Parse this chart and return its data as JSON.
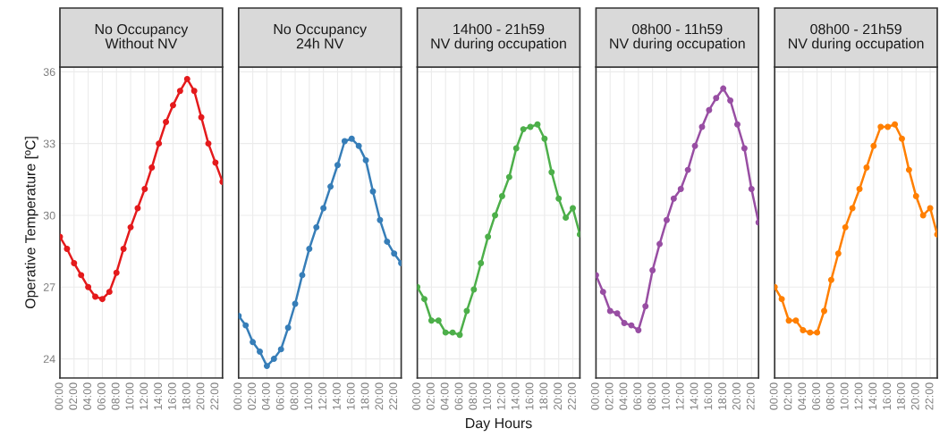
{
  "chart_data": [
    {
      "type": "line",
      "title": "No Occupancy\nWithout NV",
      "ylabel": "Operative Temperature [ºC]",
      "color": "#e41a1c",
      "marker": "circle",
      "line_style": "solid",
      "grid": true,
      "x": [
        0,
        1,
        2,
        3,
        4,
        5,
        6,
        7,
        8,
        9,
        10,
        11,
        12,
        13,
        14,
        15,
        16,
        17,
        18,
        19,
        20,
        21,
        22,
        23
      ],
      "values": [
        29.1,
        28.6,
        28.0,
        27.5,
        27.0,
        26.6,
        26.5,
        26.8,
        27.6,
        28.6,
        29.5,
        30.3,
        31.1,
        32.0,
        33.0,
        33.9,
        34.6,
        35.2,
        35.7,
        35.2,
        34.1,
        33.0,
        32.2,
        31.4
      ],
      "xlim": [
        0,
        23
      ],
      "ylim": [
        23.2,
        36.2
      ],
      "yticks": [
        24,
        27,
        30,
        33,
        36
      ],
      "xticks": [
        {
          "value": 0,
          "label": "00:00"
        },
        {
          "value": 2,
          "label": "02:00"
        },
        {
          "value": 4,
          "label": "04:00"
        },
        {
          "value": 6,
          "label": "06:00"
        },
        {
          "value": 8,
          "label": "08:00"
        },
        {
          "value": 10,
          "label": "10:00"
        },
        {
          "value": 12,
          "label": "12:00"
        },
        {
          "value": 14,
          "label": "14:00"
        },
        {
          "value": 16,
          "label": "16:00"
        },
        {
          "value": 18,
          "label": "18:00"
        },
        {
          "value": 20,
          "label": "20:00"
        },
        {
          "value": 22,
          "label": "22:00"
        }
      ]
    },
    {
      "type": "line",
      "title": "No Occupancy\n24h NV",
      "color": "#377eb8",
      "marker": "circle",
      "line_style": "solid",
      "grid": true,
      "tick_labels": "x",
      "x": [
        0,
        1,
        2,
        3,
        4,
        5,
        6,
        7,
        8,
        9,
        10,
        11,
        12,
        13,
        14,
        15,
        16,
        17,
        18,
        19,
        20,
        21,
        22,
        23
      ],
      "values": [
        25.8,
        25.4,
        24.7,
        24.3,
        23.7,
        24.0,
        24.4,
        25.3,
        26.3,
        27.5,
        28.6,
        29.5,
        30.3,
        31.2,
        32.1,
        33.1,
        33.2,
        32.9,
        32.3,
        31.0,
        29.8,
        28.9,
        28.4,
        28.0
      ],
      "xlim": [
        0,
        23
      ],
      "ylim": [
        23.2,
        36.2
      ],
      "yticks": [
        24,
        27,
        30,
        33,
        36
      ],
      "xticks": [
        {
          "value": 0,
          "label": "00:00"
        },
        {
          "value": 2,
          "label": "02:00"
        },
        {
          "value": 4,
          "label": "04:00"
        },
        {
          "value": 6,
          "label": "06:00"
        },
        {
          "value": 8,
          "label": "08:00"
        },
        {
          "value": 10,
          "label": "10:00"
        },
        {
          "value": 12,
          "label": "12:00"
        },
        {
          "value": 14,
          "label": "14:00"
        },
        {
          "value": 16,
          "label": "16:00"
        },
        {
          "value": 18,
          "label": "18:00"
        },
        {
          "value": 20,
          "label": "20:00"
        },
        {
          "value": 22,
          "label": "22:00"
        }
      ]
    },
    {
      "type": "line",
      "title": "14h00 - 21h59\nNV during occupation",
      "xlabel": "Day Hours",
      "color": "#4daf4a",
      "marker": "circle",
      "line_style": "solid",
      "grid": true,
      "tick_labels": "x",
      "x": [
        0,
        1,
        2,
        3,
        4,
        5,
        6,
        7,
        8,
        9,
        10,
        11,
        12,
        13,
        14,
        15,
        16,
        17,
        18,
        19,
        20,
        21,
        22,
        23
      ],
      "values": [
        27.0,
        26.5,
        25.6,
        25.6,
        25.1,
        25.1,
        25.0,
        26.0,
        26.9,
        28.0,
        29.1,
        30.0,
        30.8,
        31.6,
        32.8,
        33.6,
        33.7,
        33.8,
        33.2,
        31.8,
        30.7,
        29.9,
        30.3,
        29.2
      ],
      "xlim": [
        0,
        23
      ],
      "ylim": [
        23.2,
        36.2
      ],
      "yticks": [
        24,
        27,
        30,
        33,
        36
      ],
      "xticks": [
        {
          "value": 0,
          "label": "00:00"
        },
        {
          "value": 2,
          "label": "02:00"
        },
        {
          "value": 4,
          "label": "04:00"
        },
        {
          "value": 6,
          "label": "06:00"
        },
        {
          "value": 8,
          "label": "08:00"
        },
        {
          "value": 10,
          "label": "10:00"
        },
        {
          "value": 12,
          "label": "12:00"
        },
        {
          "value": 14,
          "label": "14:00"
        },
        {
          "value": 16,
          "label": "16:00"
        },
        {
          "value": 18,
          "label": "18:00"
        },
        {
          "value": 20,
          "label": "20:00"
        },
        {
          "value": 22,
          "label": "22:00"
        }
      ]
    },
    {
      "type": "line",
      "title": "08h00 - 11h59\nNV during occupation",
      "color": "#984ea3",
      "marker": "circle",
      "line_style": "solid",
      "grid": true,
      "tick_labels": "x",
      "x": [
        0,
        1,
        2,
        3,
        4,
        5,
        6,
        7,
        8,
        9,
        10,
        11,
        12,
        13,
        14,
        15,
        16,
        17,
        18,
        19,
        20,
        21,
        22,
        23
      ],
      "values": [
        27.5,
        26.8,
        26.0,
        25.9,
        25.5,
        25.4,
        25.2,
        26.2,
        27.7,
        28.8,
        29.8,
        30.7,
        31.1,
        31.9,
        32.9,
        33.7,
        34.4,
        34.9,
        35.3,
        34.8,
        33.8,
        32.8,
        31.1,
        29.7
      ],
      "xlim": [
        0,
        23
      ],
      "ylim": [
        23.2,
        36.2
      ],
      "yticks": [
        24,
        27,
        30,
        33,
        36
      ],
      "xticks": [
        {
          "value": 0,
          "label": "00:00"
        },
        {
          "value": 2,
          "label": "02:00"
        },
        {
          "value": 4,
          "label": "04:00"
        },
        {
          "value": 6,
          "label": "06:00"
        },
        {
          "value": 8,
          "label": "08:00"
        },
        {
          "value": 10,
          "label": "10:00"
        },
        {
          "value": 12,
          "label": "12:00"
        },
        {
          "value": 14,
          "label": "14:00"
        },
        {
          "value": 16,
          "label": "16:00"
        },
        {
          "value": 18,
          "label": "18:00"
        },
        {
          "value": 20,
          "label": "20:00"
        },
        {
          "value": 22,
          "label": "22:00"
        }
      ]
    },
    {
      "type": "line",
      "title": "08h00 - 21h59\nNV during occupation",
      "color": "#ff7f00",
      "marker": "circle",
      "line_style": "solid",
      "grid": true,
      "tick_labels": "x",
      "x": [
        0,
        1,
        2,
        3,
        4,
        5,
        6,
        7,
        8,
        9,
        10,
        11,
        12,
        13,
        14,
        15,
        16,
        17,
        18,
        19,
        20,
        21,
        22,
        23
      ],
      "values": [
        27.0,
        26.5,
        25.6,
        25.6,
        25.2,
        25.1,
        25.1,
        26.0,
        27.3,
        28.4,
        29.5,
        30.3,
        31.1,
        32.0,
        32.9,
        33.7,
        33.7,
        33.8,
        33.2,
        31.9,
        30.8,
        30.0,
        30.3,
        29.2
      ],
      "xlim": [
        0,
        23
      ],
      "ylim": [
        23.2,
        36.2
      ],
      "yticks": [
        24,
        27,
        30,
        33,
        36
      ],
      "xticks": [
        {
          "value": 0,
          "label": "00:00"
        },
        {
          "value": 2,
          "label": "02:00"
        },
        {
          "value": 4,
          "label": "04:00"
        },
        {
          "value": 6,
          "label": "06:00"
        },
        {
          "value": 8,
          "label": "08:00"
        },
        {
          "value": 10,
          "label": "10:00"
        },
        {
          "value": 12,
          "label": "12:00"
        },
        {
          "value": 14,
          "label": "14:00"
        },
        {
          "value": 16,
          "label": "16:00"
        },
        {
          "value": 18,
          "label": "18:00"
        },
        {
          "value": 20,
          "label": "20:00"
        },
        {
          "value": 22,
          "label": "22:00"
        }
      ]
    }
  ]
}
